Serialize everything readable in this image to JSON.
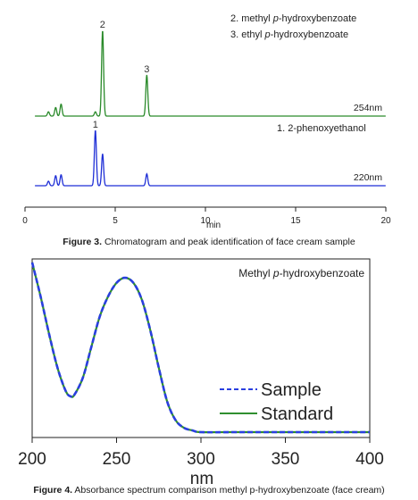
{
  "chart_data": [
    {
      "type": "line",
      "title": "",
      "xlabel": "min",
      "xlim": [
        0,
        20
      ],
      "x_ticks": [
        "0",
        "5",
        "10",
        "15",
        "20"
      ],
      "traces": [
        {
          "name": "254nm",
          "color": "#2a8a2a",
          "peaks": [
            {
              "t": 1.3,
              "h": 0.05
            },
            {
              "t": 1.7,
              "h": 0.1
            },
            {
              "t": 2.0,
              "h": 0.14
            },
            {
              "t": 3.9,
              "h": 0.05
            },
            {
              "t": 4.3,
              "h": 1.0,
              "label": "2"
            },
            {
              "t": 6.75,
              "h": 0.48,
              "label": "3"
            }
          ]
        },
        {
          "name": "220nm",
          "color": "#1f2fd6",
          "peaks": [
            {
              "t": 1.3,
              "h": 0.05
            },
            {
              "t": 1.7,
              "h": 0.11
            },
            {
              "t": 2.0,
              "h": 0.12
            },
            {
              "t": 3.9,
              "h": 0.61,
              "label": "1"
            },
            {
              "t": 4.3,
              "h": 0.35
            },
            {
              "t": 6.75,
              "h": 0.13
            }
          ]
        }
      ],
      "legend_top": [
        "2. methyl p-hydroxybenzoate",
        "3. ethyl p-hydroxybenzoate"
      ],
      "legend_mid": [
        "1. 2-phenoxyethanol"
      ],
      "caption_label": "Figure 3.",
      "caption_text": "Chromatogram and peak identification of face cream sample"
    },
    {
      "type": "line",
      "title": "Methyl p-hydroxybenzoate",
      "xlabel": "nm",
      "xlim": [
        200,
        400
      ],
      "x_ticks": [
        "200",
        "250",
        "300",
        "350",
        "400"
      ],
      "series": [
        {
          "name": "Sample",
          "color": "#2a3fe0",
          "style": "dashed",
          "x": [
            200,
            205,
            210,
            215,
            220,
            223,
            225,
            230,
            235,
            240,
            245,
            250,
            255,
            260,
            265,
            270,
            275,
            280,
            285,
            290,
            295,
            300,
            320,
            350,
            400
          ],
          "y": [
            1.0,
            0.8,
            0.58,
            0.38,
            0.24,
            0.21,
            0.22,
            0.32,
            0.5,
            0.68,
            0.8,
            0.88,
            0.91,
            0.88,
            0.78,
            0.6,
            0.38,
            0.18,
            0.07,
            0.025,
            0.01,
            0.0,
            0.0,
            0.0,
            0.0
          ]
        },
        {
          "name": "Standard",
          "color": "#2f8f2f",
          "style": "solid",
          "x": [
            200,
            205,
            210,
            215,
            220,
            223,
            225,
            230,
            235,
            240,
            245,
            250,
            255,
            260,
            265,
            270,
            275,
            280,
            285,
            290,
            295,
            300,
            320,
            350,
            400
          ],
          "y": [
            1.0,
            0.8,
            0.58,
            0.38,
            0.24,
            0.21,
            0.22,
            0.32,
            0.5,
            0.68,
            0.8,
            0.88,
            0.91,
            0.88,
            0.78,
            0.6,
            0.38,
            0.18,
            0.07,
            0.025,
            0.01,
            0.0,
            0.0,
            0.0,
            0.0
          ]
        }
      ],
      "legend_placement": "bottom-right",
      "caption_label": "Figure 4.",
      "caption_text": "Absorbance spectrum comparison methyl p-hydroxybenzoate (face cream)"
    }
  ]
}
